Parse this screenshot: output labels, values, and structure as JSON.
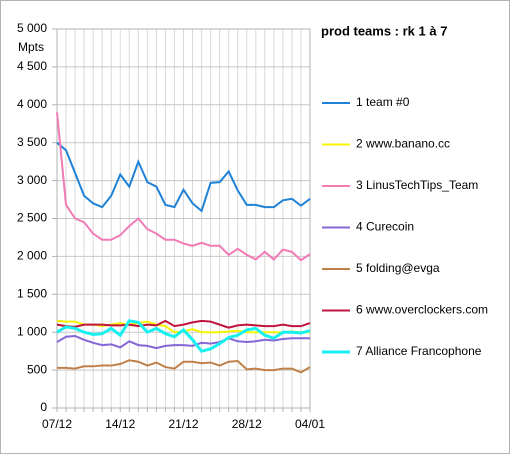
{
  "chart_data": {
    "type": "line",
    "title": "prod teams : rk 1 à 7",
    "y_label": "Mpts",
    "categories": [
      "07/12",
      null,
      null,
      null,
      null,
      null,
      null,
      "14/12",
      null,
      null,
      null,
      null,
      null,
      null,
      "21/12",
      null,
      null,
      null,
      null,
      null,
      null,
      "28/12",
      null,
      null,
      null,
      null,
      null,
      null,
      "04/01"
    ],
    "ylim": [
      0,
      5000
    ],
    "yticks": [
      {
        "value": 0,
        "label": "0"
      },
      {
        "value": 500,
        "label": "500"
      },
      {
        "value": 1000,
        "label": "1 000"
      },
      {
        "value": 1500,
        "label": "1 500"
      },
      {
        "value": 2000,
        "label": "2 000"
      },
      {
        "value": 2500,
        "label": "2 500"
      },
      {
        "value": 3000,
        "label": "3 000"
      },
      {
        "value": 3500,
        "label": "3 500"
      },
      {
        "value": 4000,
        "label": "4 000"
      },
      {
        "value": 4500,
        "label": "4 500"
      },
      {
        "value": 5000,
        "label": "5 000"
      }
    ],
    "grid": true,
    "legend": "right",
    "series": [
      {
        "name": "1 team #0",
        "color": "#1f82d6",
        "values": [
          3500,
          3400,
          3100,
          2800,
          2700,
          2650,
          2800,
          3080,
          2920,
          3250,
          2980,
          2920,
          2680,
          2650,
          2880,
          2700,
          2600,
          2970,
          2980,
          3120,
          2870,
          2680,
          2680,
          2650,
          2650,
          2740,
          2760,
          2670,
          2760
        ]
      },
      {
        "name": "2 www.banano.cc",
        "color": "#f5f500",
        "values": [
          1150,
          1140,
          1140,
          1100,
          1100,
          1080,
          1100,
          1120,
          1100,
          1120,
          1140,
          1100,
          1080,
          1000,
          1010,
          1040,
          1000,
          1000,
          1000,
          1010,
          1020,
          1000,
          1000,
          1000,
          1000,
          1000,
          1010,
          1000,
          1000
        ]
      },
      {
        "name": "3 LinusTechTips_Team",
        "color": "#f27ab5",
        "values": [
          3900,
          2680,
          2500,
          2450,
          2300,
          2220,
          2220,
          2280,
          2400,
          2500,
          2360,
          2300,
          2220,
          2220,
          2170,
          2140,
          2180,
          2140,
          2140,
          2020,
          2100,
          2020,
          1960,
          2060,
          1960,
          2090,
          2060,
          1950,
          2030
        ]
      },
      {
        "name": "4 Curecoin",
        "color": "#8466d6",
        "values": [
          870,
          940,
          950,
          900,
          860,
          830,
          840,
          800,
          880,
          830,
          820,
          790,
          820,
          830,
          830,
          820,
          860,
          850,
          870,
          920,
          880,
          870,
          880,
          900,
          890,
          910,
          920,
          920,
          920
        ]
      },
      {
        "name": "5 folding@evga",
        "color": "#c0804a",
        "values": [
          530,
          530,
          520,
          550,
          550,
          560,
          560,
          580,
          630,
          610,
          560,
          600,
          540,
          520,
          610,
          610,
          590,
          600,
          560,
          610,
          620,
          510,
          520,
          500,
          500,
          520,
          520,
          470,
          540
        ]
      },
      {
        "name": "6 www.overclockers.com",
        "color": "#c0143c",
        "values": [
          1100,
          1080,
          1070,
          1100,
          1100,
          1100,
          1090,
          1090,
          1100,
          1080,
          1100,
          1090,
          1150,
          1080,
          1100,
          1130,
          1150,
          1140,
          1100,
          1060,
          1090,
          1100,
          1090,
          1080,
          1080,
          1100,
          1080,
          1080,
          1120
        ]
      },
      {
        "name": "7 Alliance Francophone",
        "color": "#18f0f0",
        "values": [
          1000,
          1070,
          1050,
          1000,
          970,
          980,
          1050,
          960,
          1150,
          1130,
          1000,
          1050,
          980,
          940,
          1030,
          900,
          750,
          780,
          850,
          930,
          960,
          1030,
          1050,
          960,
          920,
          1000,
          1000,
          990,
          1020
        ]
      }
    ]
  }
}
